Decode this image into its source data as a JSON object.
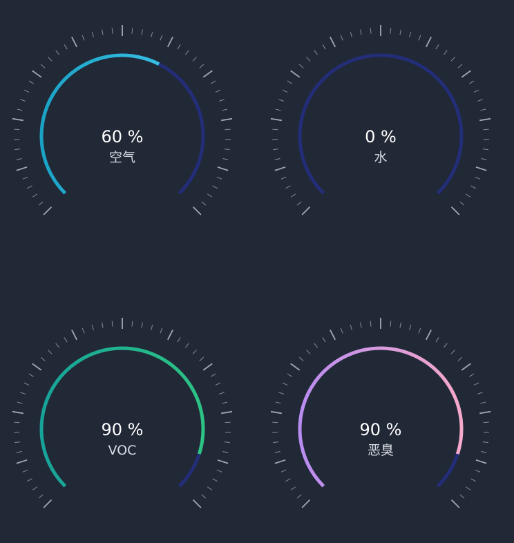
{
  "background_color": "#212836",
  "track_color": "#232d78",
  "tick_color": "#aab0bc",
  "chart_data": [
    {
      "type": "gauge",
      "value": 60,
      "value_text": "60 %",
      "label": "空气",
      "min": 0,
      "max": 100,
      "gradient": [
        "#1aa3c4",
        "#42c8ee"
      ]
    },
    {
      "type": "gauge",
      "value": 0,
      "value_text": "0 %",
      "label": "水",
      "min": 0,
      "max": 100,
      "gradient": [
        "#1aa3c4",
        "#42c8ee"
      ]
    },
    {
      "type": "gauge",
      "value": 90,
      "value_text": "90 %",
      "label": "VOC",
      "min": 0,
      "max": 100,
      "gradient": [
        "#17a398",
        "#2cc383"
      ]
    },
    {
      "type": "gauge",
      "value": 90,
      "value_text": "90 %",
      "label": "恶臭",
      "min": 0,
      "max": 100,
      "gradient": [
        "#b98cf0",
        "#f6a9c8"
      ]
    }
  ]
}
